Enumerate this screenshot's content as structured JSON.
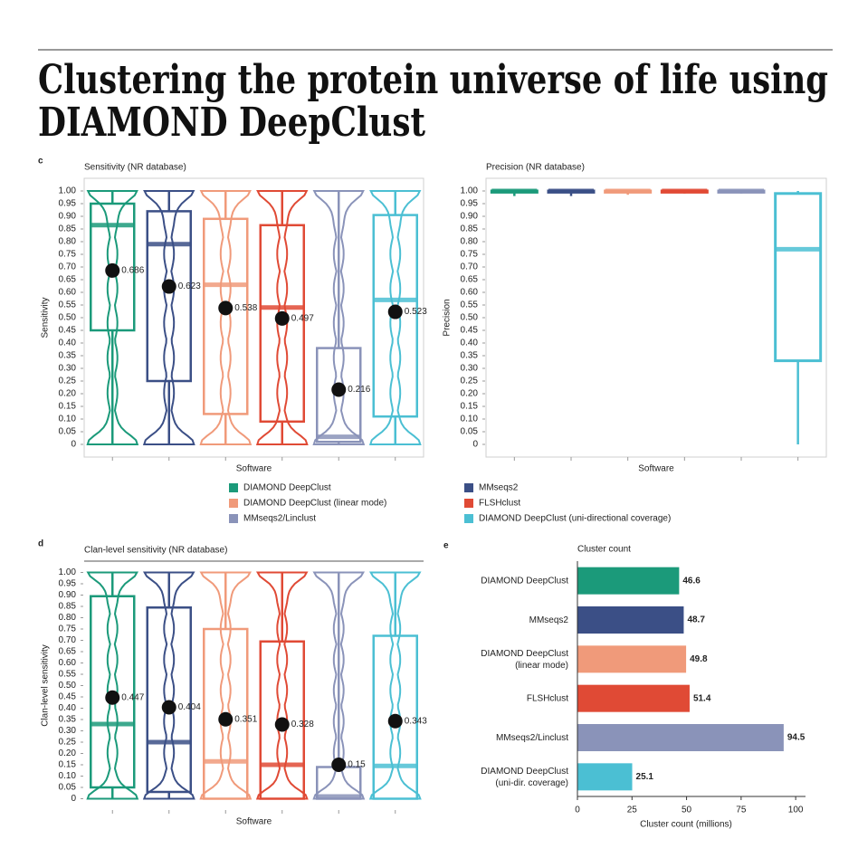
{
  "header": {
    "title": [
      "Clustering the protein universe of life using",
      "DIAMOND DeepClust"
    ]
  },
  "chart_data": [
    {
      "type": "violin",
      "panel": "c",
      "title": "Sensitivity (NR database)",
      "xlabel": "Software",
      "ylabel": "Sensitivity",
      "frame": "box",
      "legend": "below",
      "categories": [
        null,
        null,
        null,
        null,
        null,
        null
      ],
      "ylim": [
        -0.05,
        1.05
      ],
      "yticks": [
        0,
        0.05,
        {
          "value": 0.1,
          "label": "0.10"
        },
        0.15,
        {
          "value": 0.2,
          "label": "0.20"
        },
        0.25,
        {
          "value": 0.3,
          "label": "0.30"
        },
        0.35,
        {
          "value": 0.4,
          "label": "0.40"
        },
        0.45,
        {
          "value": 0.5,
          "label": "0.50"
        },
        0.55,
        {
          "value": 0.6,
          "label": "0.60"
        },
        0.65,
        {
          "value": 0.7,
          "label": "0.70"
        },
        0.75,
        {
          "value": 0.8,
          "label": "0.80"
        },
        0.85,
        {
          "value": 0.9,
          "label": "0.90"
        },
        0.95,
        {
          "value": 1,
          "label": "1.00"
        }
      ],
      "series": [
        {
          "name": "DIAMOND DeepClust",
          "color": "#1b9a7a",
          "min": 0,
          "q1": 0.45,
          "median": 0.865,
          "q3": 0.95,
          "max": 1,
          "mean": 0.686
        },
        {
          "name": "MMseqs2",
          "color": "#3b4f86",
          "min": 0,
          "q1": 0.25,
          "median": 0.79,
          "q3": 0.92,
          "max": 1,
          "mean": 0.623
        },
        {
          "name": "DIAMOND DeepClust (linear mode)",
          "color": "#f09a7a",
          "min": 0,
          "q1": 0.12,
          "median": 0.63,
          "q3": 0.89,
          "max": 1,
          "mean": 0.538
        },
        {
          "name": "FLSHclust",
          "color": "#e04a35",
          "min": 0,
          "q1": 0.09,
          "median": 0.54,
          "q3": 0.865,
          "max": 1,
          "mean": 0.497
        },
        {
          "name": "MMseqs2/Linclust",
          "color": "#8a93b9",
          "min": 0,
          "q1": 0.01,
          "median": 0.03,
          "q3": 0.38,
          "max": 1,
          "mean": 0.216
        },
        {
          "name": "DIAMOND DeepClust (uni-directional coverage)",
          "color": "#4bbfd3",
          "min": 0,
          "q1": 0.11,
          "median": 0.57,
          "q3": 0.905,
          "max": 1,
          "mean": 0.523
        }
      ]
    },
    {
      "type": "box",
      "title": "Precision (NR database)",
      "xlabel": "Software",
      "ylabel": "Precision",
      "frame": "box",
      "categories": [
        null,
        null,
        null,
        null,
        null,
        null
      ],
      "ylim": [
        -0.05,
        1.05
      ],
      "yticks": [
        0,
        0.05,
        {
          "value": 0.1,
          "label": "0.10"
        },
        0.15,
        {
          "value": 0.2,
          "label": "0.20"
        },
        0.25,
        {
          "value": 0.3,
          "label": "0.30"
        },
        0.35,
        {
          "value": 0.4,
          "label": "0.40"
        },
        0.45,
        {
          "value": 0.5,
          "label": "0.50"
        },
        0.55,
        {
          "value": 0.6,
          "label": "0.60"
        },
        0.65,
        {
          "value": 0.7,
          "label": "0.70"
        },
        0.75,
        {
          "value": 0.8,
          "label": "0.80"
        },
        0.85,
        {
          "value": 0.9,
          "label": "0.90"
        },
        0.95,
        {
          "value": 1,
          "label": "1.00"
        }
      ],
      "series": [
        {
          "color": "#1b9a7a",
          "min": 0.98,
          "q1": 0.995,
          "median": 1,
          "q3": 1,
          "max": 1
        },
        {
          "color": "#3b4f86",
          "min": 0.98,
          "q1": 0.995,
          "median": 1,
          "q3": 1,
          "max": 1
        },
        {
          "color": "#f09a7a",
          "min": 0.985,
          "q1": 0.995,
          "median": 1,
          "q3": 1,
          "max": 1
        },
        {
          "color": "#e04a35",
          "min": 0.99,
          "q1": 0.995,
          "median": 1,
          "q3": 1,
          "max": 1
        },
        {
          "color": "#8a93b9",
          "min": 0.99,
          "q1": 0.995,
          "median": 1,
          "q3": 1,
          "max": 1
        },
        {
          "color": "#4bbfd3",
          "min": 0,
          "q1": 0.33,
          "median": 0.77,
          "q3": 0.99,
          "max": 1
        }
      ]
    },
    {
      "type": "violin",
      "panel": "d",
      "title": "Clan-level sensitivity (NR database)",
      "xlabel": "Software",
      "ylabel": "Clan-level sensitivity",
      "frame": "top",
      "categories": [
        null,
        null,
        null,
        null,
        null,
        null
      ],
      "ylim": [
        -0.05,
        1.05
      ],
      "yticks": [
        0,
        0.05,
        {
          "value": 0.1,
          "label": "0.10"
        },
        0.15,
        {
          "value": 0.2,
          "label": "0.20"
        },
        0.25,
        {
          "value": 0.3,
          "label": "0.30"
        },
        0.35,
        {
          "value": 0.4,
          "label": "0.40"
        },
        0.45,
        {
          "value": 0.5,
          "label": "0.50"
        },
        0.55,
        {
          "value": 0.6,
          "label": "0.60"
        },
        0.65,
        {
          "value": 0.7,
          "label": "0.70"
        },
        0.75,
        {
          "value": 0.8,
          "label": "0.80"
        },
        0.85,
        {
          "value": 0.9,
          "label": "0.90"
        },
        0.95,
        {
          "value": 1,
          "label": "1.00"
        }
      ],
      "series": [
        {
          "color": "#1b9a7a",
          "min": 0,
          "q1": 0.05,
          "median": 0.33,
          "q3": 0.895,
          "max": 1,
          "mean": 0.447
        },
        {
          "color": "#3b4f86",
          "min": 0,
          "q1": 0.03,
          "median": 0.25,
          "q3": 0.845,
          "max": 1,
          "mean": 0.404
        },
        {
          "color": "#f09a7a",
          "min": 0,
          "q1": 0,
          "median": 0.165,
          "q3": 0.75,
          "max": 1,
          "mean": 0.351
        },
        {
          "color": "#e04a35",
          "min": 0,
          "q1": 0,
          "median": 0.15,
          "q3": 0.695,
          "max": 1,
          "mean": 0.328
        },
        {
          "color": "#8a93b9",
          "min": 0,
          "q1": 0,
          "median": 0.01,
          "q3": 0.14,
          "max": 1,
          "mean": 0.15
        },
        {
          "color": "#4bbfd3",
          "min": 0,
          "q1": 0,
          "median": 0.145,
          "q3": 0.72,
          "max": 1,
          "mean": 0.343
        }
      ]
    },
    {
      "type": "barh",
      "panel": "e",
      "title": "Cluster count",
      "xlabel": "Cluster count (millions)",
      "categories": [
        "DIAMOND DeepClust",
        "MMseqs2",
        "DIAMOND DeepClust\n(linear mode)",
        "FLSHclust",
        "MMseqs2/Linclust",
        "DIAMOND DeepClust\n(uni-dir. coverage)"
      ],
      "values": [
        46.6,
        48.7,
        49.8,
        51.4,
        94.5,
        25.1
      ],
      "colors": [
        "#1b9a7a",
        "#3b4f86",
        "#f09a7a",
        "#e04a35",
        "#8a93b9",
        "#4bbfd3"
      ],
      "xlim": [
        0,
        104.5
      ],
      "xticks": [
        0,
        25,
        50,
        75,
        100
      ]
    }
  ]
}
